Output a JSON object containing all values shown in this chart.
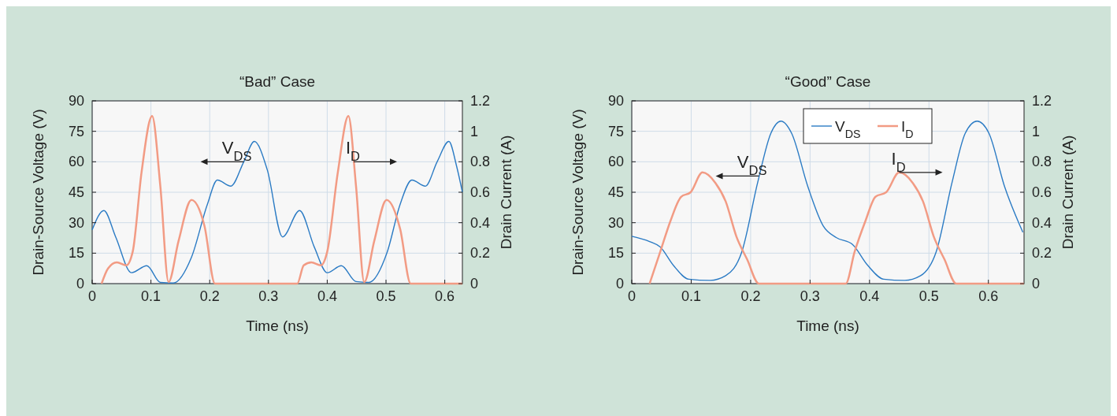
{
  "chart_data": [
    {
      "type": "line",
      "title": "“Bad” Case",
      "xlabel": "Time (ns)",
      "ylabel": "Drain-Source Voltage (V)",
      "y2label": "Drain Current (A)",
      "xlim": [
        0,
        0.63
      ],
      "xticks": [
        0,
        0.1,
        0.2,
        0.3,
        0.4,
        0.5,
        0.6
      ],
      "ylim": [
        0,
        90
      ],
      "yticks": [
        0,
        15,
        30,
        45,
        60,
        75,
        90
      ],
      "y2lim": [
        0,
        1.2
      ],
      "y2ticks": [
        0,
        0.2,
        0.4,
        0.6,
        0.8,
        1,
        1.2
      ],
      "grid": true,
      "series": [
        {
          "color": "#2b7bc4",
          "x": [
            0,
            0.02,
            0.04,
            0.067,
            0.093,
            0.116,
            0.138,
            0.169,
            0.196,
            0.213,
            0.236,
            0.258,
            0.276,
            0.298,
            0.324,
            0.353,
            0.378,
            0.4,
            0.424,
            0.449,
            0.471,
            0.502,
            0.524,
            0.544,
            0.567,
            0.587,
            0.607,
            0.62,
            0.63
          ],
          "values": [
            26.5,
            36,
            23,
            5.4,
            8.8,
            0.6,
            0.3,
            13,
            39,
            51,
            48,
            60,
            70,
            56,
            23,
            36,
            18,
            5.4,
            8.8,
            1,
            0.6,
            15.5,
            39,
            51,
            48,
            60,
            70,
            58,
            45
          ]
        },
        {
          "axis": "y2",
          "color": "#f29b84",
          "x": [
            0.016,
            0.027,
            0.042,
            0.058,
            0.069,
            0.084,
            0.102,
            0.116,
            0.13,
            0.147,
            0.169,
            0.191,
            0.209,
            0.349,
            0.36,
            0.373,
            0.389,
            0.4,
            0.418,
            0.436,
            0.449,
            0.463,
            0.48,
            0.501,
            0.524,
            0.542,
            0.63
          ],
          "values": [
            0,
            0.1,
            0.14,
            0.12,
            0.21,
            0.73,
            1.1,
            0.64,
            0.01,
            0.28,
            0.55,
            0.38,
            0,
            0,
            0.12,
            0.14,
            0.12,
            0.21,
            0.73,
            1.1,
            0.64,
            0.01,
            0.28,
            0.55,
            0.36,
            0,
            0
          ]
        }
      ],
      "annotations": [
        {
          "text": "V$_{DS}$",
          "x": 0.258,
          "y": 60
        },
        {
          "text": "I$_{D}$",
          "x": 0.445,
          "y": 60
        }
      ]
    },
    {
      "type": "line",
      "title": "“Good” Case",
      "xlabel": "Time (ns)",
      "ylabel": "Drain-Source Voltage (V)",
      "y2label": "Drain Current (A)",
      "xlim": [
        0,
        0.66
      ],
      "xticks": [
        0,
        0.1,
        0.2,
        0.3,
        0.4,
        0.5,
        0.6
      ],
      "ylim": [
        0,
        90
      ],
      "yticks": [
        0,
        15,
        30,
        45,
        60,
        75,
        90
      ],
      "y2lim": [
        0,
        1.2
      ],
      "y2ticks": [
        0,
        0.2,
        0.4,
        0.6,
        0.8,
        1,
        1.2
      ],
      "grid": true,
      "legend": "top",
      "series": [
        {
          "name": "V$_{DS}$",
          "color": "#2b7bc4",
          "x": [
            0,
            0.03,
            0.048,
            0.07,
            0.096,
            0.132,
            0.158,
            0.185,
            0.212,
            0.234,
            0.251,
            0.269,
            0.296,
            0.322,
            0.344,
            0.371,
            0.397,
            0.424,
            0.459,
            0.486,
            0.512,
            0.539,
            0.561,
            0.581,
            0.601,
            0.627,
            0.658
          ],
          "values": [
            23.3,
            20.7,
            18,
            9,
            2.2,
            1.6,
            3.9,
            15.5,
            50,
            74,
            80,
            74,
            48,
            28.5,
            22.7,
            19.4,
            9,
            2.2,
            1.6,
            3.9,
            15.5,
            50,
            74,
            80,
            74,
            48,
            25.3
          ]
        },
        {
          "name": "I$_{D}$",
          "axis": "y2",
          "color": "#f29b84",
          "x": [
            0.03,
            0.048,
            0.065,
            0.083,
            0.099,
            0.119,
            0.141,
            0.158,
            0.176,
            0.194,
            0.214,
            0.36,
            0.375,
            0.393,
            0.41,
            0.428,
            0.45,
            0.473,
            0.49,
            0.508,
            0.526,
            0.546,
            0.66
          ],
          "values": [
            0,
            0.21,
            0.41,
            0.57,
            0.6,
            0.73,
            0.66,
            0.54,
            0.31,
            0.16,
            0,
            0,
            0.21,
            0.41,
            0.57,
            0.6,
            0.73,
            0.66,
            0.54,
            0.31,
            0.16,
            0,
            0
          ]
        }
      ],
      "annotations": [
        {
          "text": "V$_{DS}$",
          "x": 0.214,
          "y": 53
        },
        {
          "text": "I$_{D}$",
          "x": 0.45,
          "y": 54.75
        }
      ]
    }
  ]
}
